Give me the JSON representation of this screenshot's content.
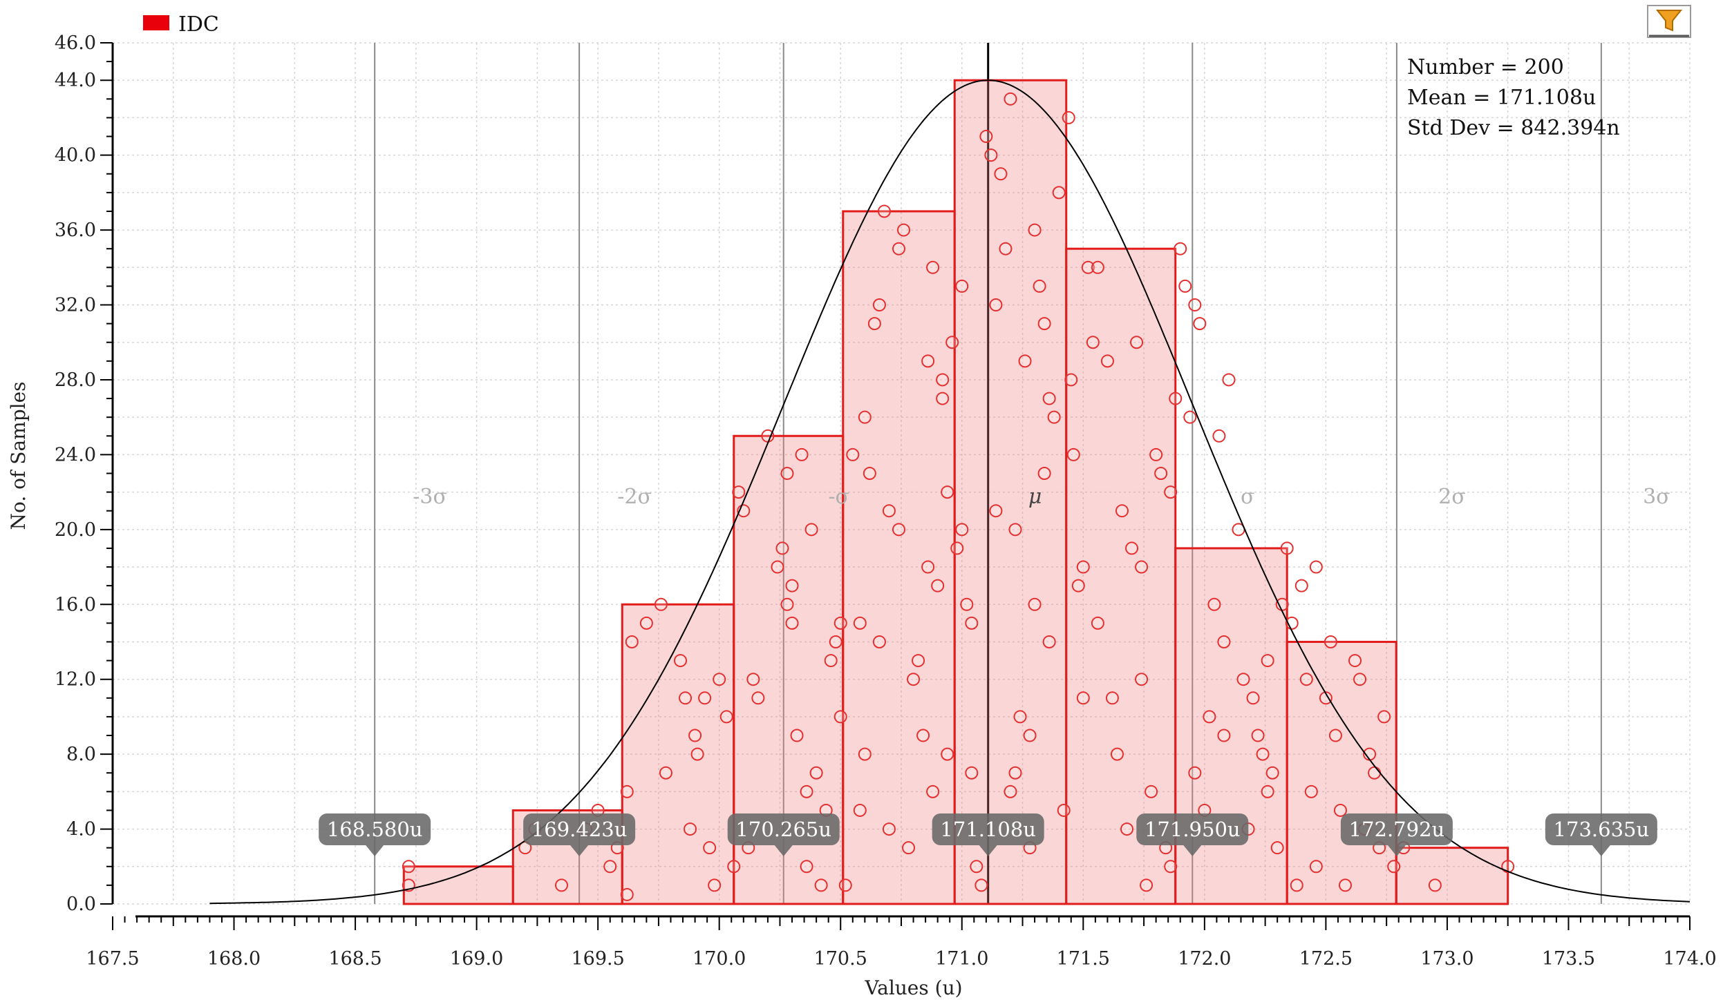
{
  "legend": {
    "series_name": "IDC",
    "color": "#e8000b"
  },
  "filter_icon": "filter-icon",
  "stats": {
    "number": "Number = 200",
    "mean": "Mean = 171.108u",
    "std_dev": "Std Dev = 842.394n"
  },
  "chart_data": {
    "type": "bar",
    "xlabel": "Values (u)",
    "ylabel": "No. of Samples",
    "xlim": [
      167.5,
      174.0
    ],
    "ylim": [
      0,
      46
    ],
    "grid": true,
    "legend_position": "top-left",
    "x_ticks": [
      "167.5",
      "168.0",
      "168.5",
      "169.0",
      "169.5",
      "170.0",
      "170.5",
      "171.0",
      "171.5",
      "172.0",
      "172.5",
      "173.0",
      "173.5",
      "174.0"
    ],
    "x_tick_values": [
      167.5,
      168.0,
      168.5,
      169.0,
      169.5,
      170.0,
      170.5,
      171.0,
      171.5,
      172.0,
      172.5,
      173.0,
      173.5,
      174.0
    ],
    "y_ticks": [
      "0.0",
      "4.0",
      "8.0",
      "12.0",
      "16.0",
      "20.0",
      "24.0",
      "28.0",
      "32.0",
      "36.0",
      "40.0",
      "44.0",
      "46.0"
    ],
    "y_tick_values": [
      0,
      4,
      8,
      12,
      16,
      20,
      24,
      28,
      32,
      36,
      40,
      44,
      46
    ],
    "bins": [
      {
        "start": 168.7,
        "end": 169.15,
        "count": 2
      },
      {
        "start": 169.15,
        "end": 169.6,
        "count": 5
      },
      {
        "start": 169.6,
        "end": 170.06,
        "count": 16
      },
      {
        "start": 170.06,
        "end": 170.51,
        "count": 25
      },
      {
        "start": 170.51,
        "end": 170.97,
        "count": 37
      },
      {
        "start": 170.97,
        "end": 171.43,
        "count": 44
      },
      {
        "start": 171.43,
        "end": 171.88,
        "count": 35
      },
      {
        "start": 171.88,
        "end": 172.34,
        "count": 19
      },
      {
        "start": 172.34,
        "end": 172.79,
        "count": 14
      },
      {
        "start": 172.79,
        "end": 173.25,
        "count": 3
      }
    ],
    "normal_fit": {
      "mean": 171.108,
      "std_dev": 0.842394,
      "peak": 44,
      "range": [
        167.9,
        174.0
      ]
    },
    "sigma_lines": [
      {
        "label": "-3σ",
        "value": 168.58,
        "marker": "168.580u"
      },
      {
        "label": "-2σ",
        "value": 169.423,
        "marker": "169.423u"
      },
      {
        "label": "-σ",
        "value": 170.265,
        "marker": "170.265u"
      },
      {
        "label": "μ",
        "value": 171.108,
        "marker": "171.108u"
      },
      {
        "label": "σ",
        "value": 171.95,
        "marker": "171.950u"
      },
      {
        "label": "2σ",
        "value": 172.792,
        "marker": "172.792u"
      },
      {
        "label": "3σ",
        "value": 173.635,
        "marker": "173.635u"
      }
    ],
    "samples": [
      [
        168.72,
        1
      ],
      [
        168.72,
        2
      ],
      [
        169.2,
        3
      ],
      [
        169.35,
        1
      ],
      [
        169.45,
        4
      ],
      [
        169.5,
        5
      ],
      [
        169.55,
        2
      ],
      [
        169.62,
        0.5
      ],
      [
        169.62,
        6
      ],
      [
        169.64,
        14
      ],
      [
        169.7,
        15
      ],
      [
        169.76,
        16
      ],
      [
        169.78,
        7
      ],
      [
        169.84,
        13
      ],
      [
        169.88,
        4
      ],
      [
        169.9,
        9
      ],
      [
        169.91,
        8
      ],
      [
        169.94,
        11
      ],
      [
        169.96,
        3
      ],
      [
        169.98,
        1
      ],
      [
        170.0,
        12
      ],
      [
        170.03,
        10
      ],
      [
        170.06,
        2
      ],
      [
        170.08,
        22
      ],
      [
        170.1,
        21
      ],
      [
        170.14,
        12
      ],
      [
        170.16,
        11
      ],
      [
        170.2,
        25
      ],
      [
        170.24,
        18
      ],
      [
        170.26,
        19
      ],
      [
        170.28,
        16
      ],
      [
        170.28,
        23
      ],
      [
        170.3,
        15
      ],
      [
        170.3,
        17
      ],
      [
        170.32,
        9
      ],
      [
        170.34,
        24
      ],
      [
        170.36,
        6
      ],
      [
        170.38,
        20
      ],
      [
        170.4,
        7
      ],
      [
        170.42,
        1
      ],
      [
        170.44,
        5
      ],
      [
        170.46,
        13
      ],
      [
        170.48,
        14
      ],
      [
        170.5,
        15
      ],
      [
        170.5,
        10
      ],
      [
        170.52,
        1
      ],
      [
        170.55,
        24
      ],
      [
        170.58,
        15
      ],
      [
        170.6,
        8
      ],
      [
        170.6,
        26
      ],
      [
        170.62,
        23
      ],
      [
        170.64,
        31
      ],
      [
        170.66,
        32
      ],
      [
        170.66,
        14
      ],
      [
        170.68,
        37
      ],
      [
        170.7,
        4
      ],
      [
        170.7,
        21
      ],
      [
        170.74,
        35
      ],
      [
        170.76,
        36
      ],
      [
        170.78,
        3
      ],
      [
        170.8,
        12
      ],
      [
        170.82,
        13
      ],
      [
        170.84,
        9
      ],
      [
        170.86,
        29
      ],
      [
        170.86,
        18
      ],
      [
        170.88,
        6
      ],
      [
        170.88,
        34
      ],
      [
        170.9,
        17
      ],
      [
        170.92,
        28
      ],
      [
        170.94,
        8
      ],
      [
        170.94,
        22
      ],
      [
        170.96,
        30
      ],
      [
        170.98,
        19
      ],
      [
        171.0,
        33
      ],
      [
        171.0,
        20
      ],
      [
        171.02,
        16
      ],
      [
        171.04,
        7
      ],
      [
        171.04,
        15
      ],
      [
        171.06,
        2
      ],
      [
        171.08,
        1
      ],
      [
        171.1,
        41
      ],
      [
        171.12,
        40
      ],
      [
        171.14,
        21
      ],
      [
        171.14,
        32
      ],
      [
        171.16,
        39
      ],
      [
        171.18,
        35
      ],
      [
        171.2,
        43
      ],
      [
        171.2,
        6
      ],
      [
        171.22,
        7
      ],
      [
        171.22,
        20
      ],
      [
        171.24,
        10
      ],
      [
        171.26,
        29
      ],
      [
        171.28,
        3
      ],
      [
        171.3,
        36
      ],
      [
        171.3,
        16
      ],
      [
        171.32,
        33
      ],
      [
        171.34,
        31
      ],
      [
        171.34,
        23
      ],
      [
        171.36,
        27
      ],
      [
        171.38,
        26
      ],
      [
        171.4,
        38
      ],
      [
        171.42,
        5
      ],
      [
        171.44,
        42
      ],
      [
        171.45,
        28
      ],
      [
        171.46,
        24
      ],
      [
        171.48,
        17
      ],
      [
        171.5,
        18
      ],
      [
        171.52,
        34
      ],
      [
        171.54,
        30
      ],
      [
        171.56,
        34
      ],
      [
        171.56,
        15
      ],
      [
        171.6,
        29
      ],
      [
        171.62,
        11
      ],
      [
        171.64,
        8
      ],
      [
        171.66,
        21
      ],
      [
        171.68,
        4
      ],
      [
        171.7,
        19
      ],
      [
        171.72,
        30
      ],
      [
        171.74,
        18
      ],
      [
        171.76,
        1
      ],
      [
        171.78,
        6
      ],
      [
        171.8,
        24
      ],
      [
        171.82,
        23
      ],
      [
        171.84,
        3
      ],
      [
        171.86,
        2
      ],
      [
        171.86,
        22
      ],
      [
        171.88,
        27
      ],
      [
        171.9,
        35
      ],
      [
        171.92,
        33
      ],
      [
        171.94,
        26
      ],
      [
        171.96,
        32
      ],
      [
        171.98,
        31
      ],
      [
        172.0,
        5
      ],
      [
        172.02,
        10
      ],
      [
        172.04,
        16
      ],
      [
        172.06,
        25
      ],
      [
        172.08,
        14
      ],
      [
        172.1,
        28
      ],
      [
        172.14,
        20
      ],
      [
        172.16,
        12
      ],
      [
        172.18,
        4
      ],
      [
        172.2,
        11
      ],
      [
        172.22,
        9
      ],
      [
        172.24,
        8
      ],
      [
        172.26,
        13
      ],
      [
        172.28,
        7
      ],
      [
        172.3,
        3
      ],
      [
        172.32,
        16
      ],
      [
        172.34,
        19
      ],
      [
        172.36,
        15
      ],
      [
        172.38,
        1
      ],
      [
        172.4,
        17
      ],
      [
        172.42,
        12
      ],
      [
        172.44,
        6
      ],
      [
        172.46,
        18
      ],
      [
        172.5,
        11
      ],
      [
        172.52,
        14
      ],
      [
        172.54,
        9
      ],
      [
        172.56,
        5
      ],
      [
        172.58,
        1
      ],
      [
        172.62,
        13
      ],
      [
        172.64,
        12
      ],
      [
        172.66,
        4
      ],
      [
        172.68,
        8
      ],
      [
        172.7,
        7
      ],
      [
        172.72,
        3
      ],
      [
        172.74,
        10
      ],
      [
        172.78,
        2
      ],
      [
        172.82,
        3
      ],
      [
        172.95,
        1
      ],
      [
        173.25,
        2
      ],
      [
        169.24,
        4
      ],
      [
        169.58,
        3
      ],
      [
        170.12,
        3
      ],
      [
        170.36,
        2
      ],
      [
        170.58,
        5
      ],
      [
        171.28,
        9
      ],
      [
        171.74,
        12
      ],
      [
        172.08,
        9
      ],
      [
        172.26,
        6
      ],
      [
        172.46,
        2
      ],
      [
        171.5,
        11
      ],
      [
        170.74,
        20
      ],
      [
        170.92,
        27
      ],
      [
        171.36,
        14
      ],
      [
        169.86,
        11
      ],
      [
        171.96,
        7
      ]
    ]
  }
}
